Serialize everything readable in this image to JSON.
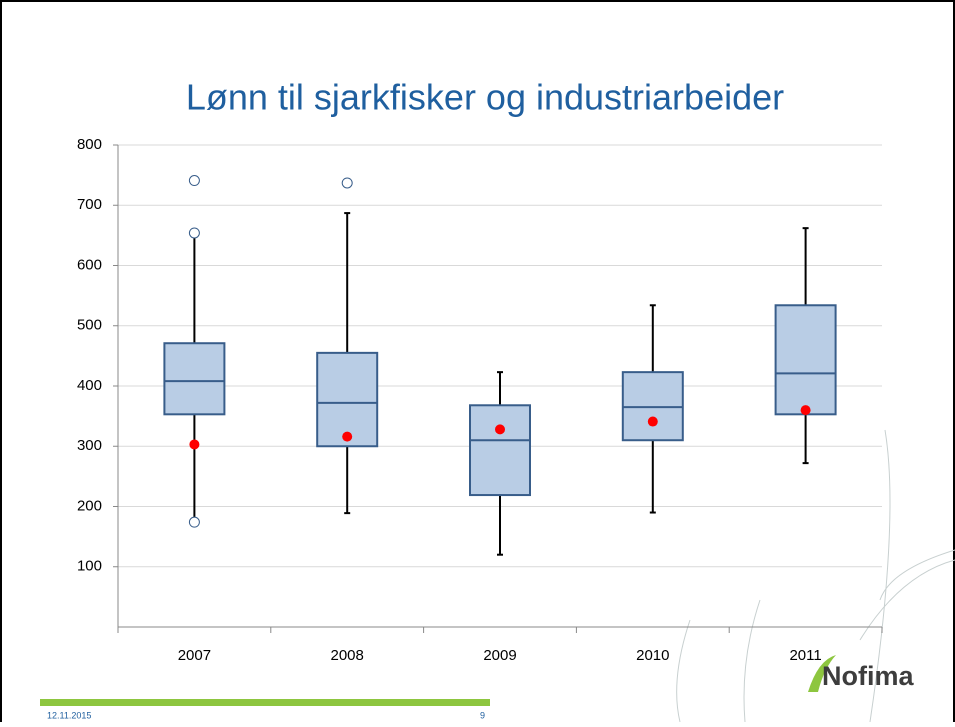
{
  "chart_data": {
    "type": "box",
    "title": "Lønn til sjarkfisker og industriarbeider",
    "categories": [
      "2007",
      "2008",
      "2009",
      "2010",
      "2011"
    ],
    "ylim": [
      0,
      800
    ],
    "yticks": [
      100,
      200,
      300,
      400,
      500,
      600,
      700,
      800
    ],
    "grid": true,
    "box_color": "#b9cde5",
    "edge_color": "#385d8a",
    "mean_color": "#ff0000",
    "whisker_color": "#000000",
    "boxes": [
      {
        "low": 180,
        "q1": 353,
        "median": 408,
        "q3": 471,
        "high": 648,
        "mean": 303,
        "outliers": [
          741,
          654,
          174
        ]
      },
      {
        "low": 189,
        "q1": 300,
        "median": 372,
        "q3": 455,
        "high": 687,
        "mean": 316,
        "outliers": [
          737
        ]
      },
      {
        "low": 120,
        "q1": 219,
        "median": 310,
        "q3": 368,
        "high": 423,
        "mean": 328,
        "outliers": []
      },
      {
        "low": 190,
        "q1": 310,
        "median": 365,
        "q3": 423,
        "high": 534,
        "mean": 341,
        "outliers": []
      },
      {
        "low": 272,
        "q1": 353,
        "median": 421,
        "q3": 534,
        "high": 662,
        "mean": 360,
        "outliers": []
      }
    ]
  },
  "footer": {
    "date": "12.11.2015",
    "page": "9",
    "logo": "Nofima"
  }
}
